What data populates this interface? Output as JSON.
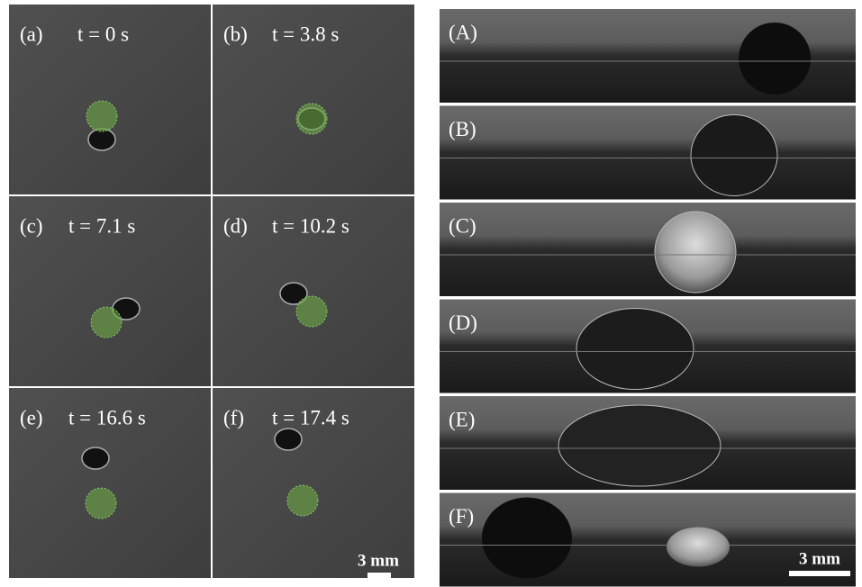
{
  "top_view": {
    "panels": [
      {
        "label": "(a)",
        "time": "t = 0 s"
      },
      {
        "label": "(b)",
        "time": "t = 3.8 s"
      },
      {
        "label": "(c)",
        "time": "t = 7.1 s"
      },
      {
        "label": "(d)",
        "time": "t = 10.2 s"
      },
      {
        "label": "(e)",
        "time": "t = 16.6 s"
      },
      {
        "label": "(f)",
        "time": "t = 17.4 s"
      }
    ],
    "scale_bar": "3 mm"
  },
  "side_view": {
    "panels": [
      "(A)",
      "(B)",
      "(C)",
      "(D)",
      "(E)",
      "(F)"
    ],
    "scale_bar": "3 mm"
  }
}
